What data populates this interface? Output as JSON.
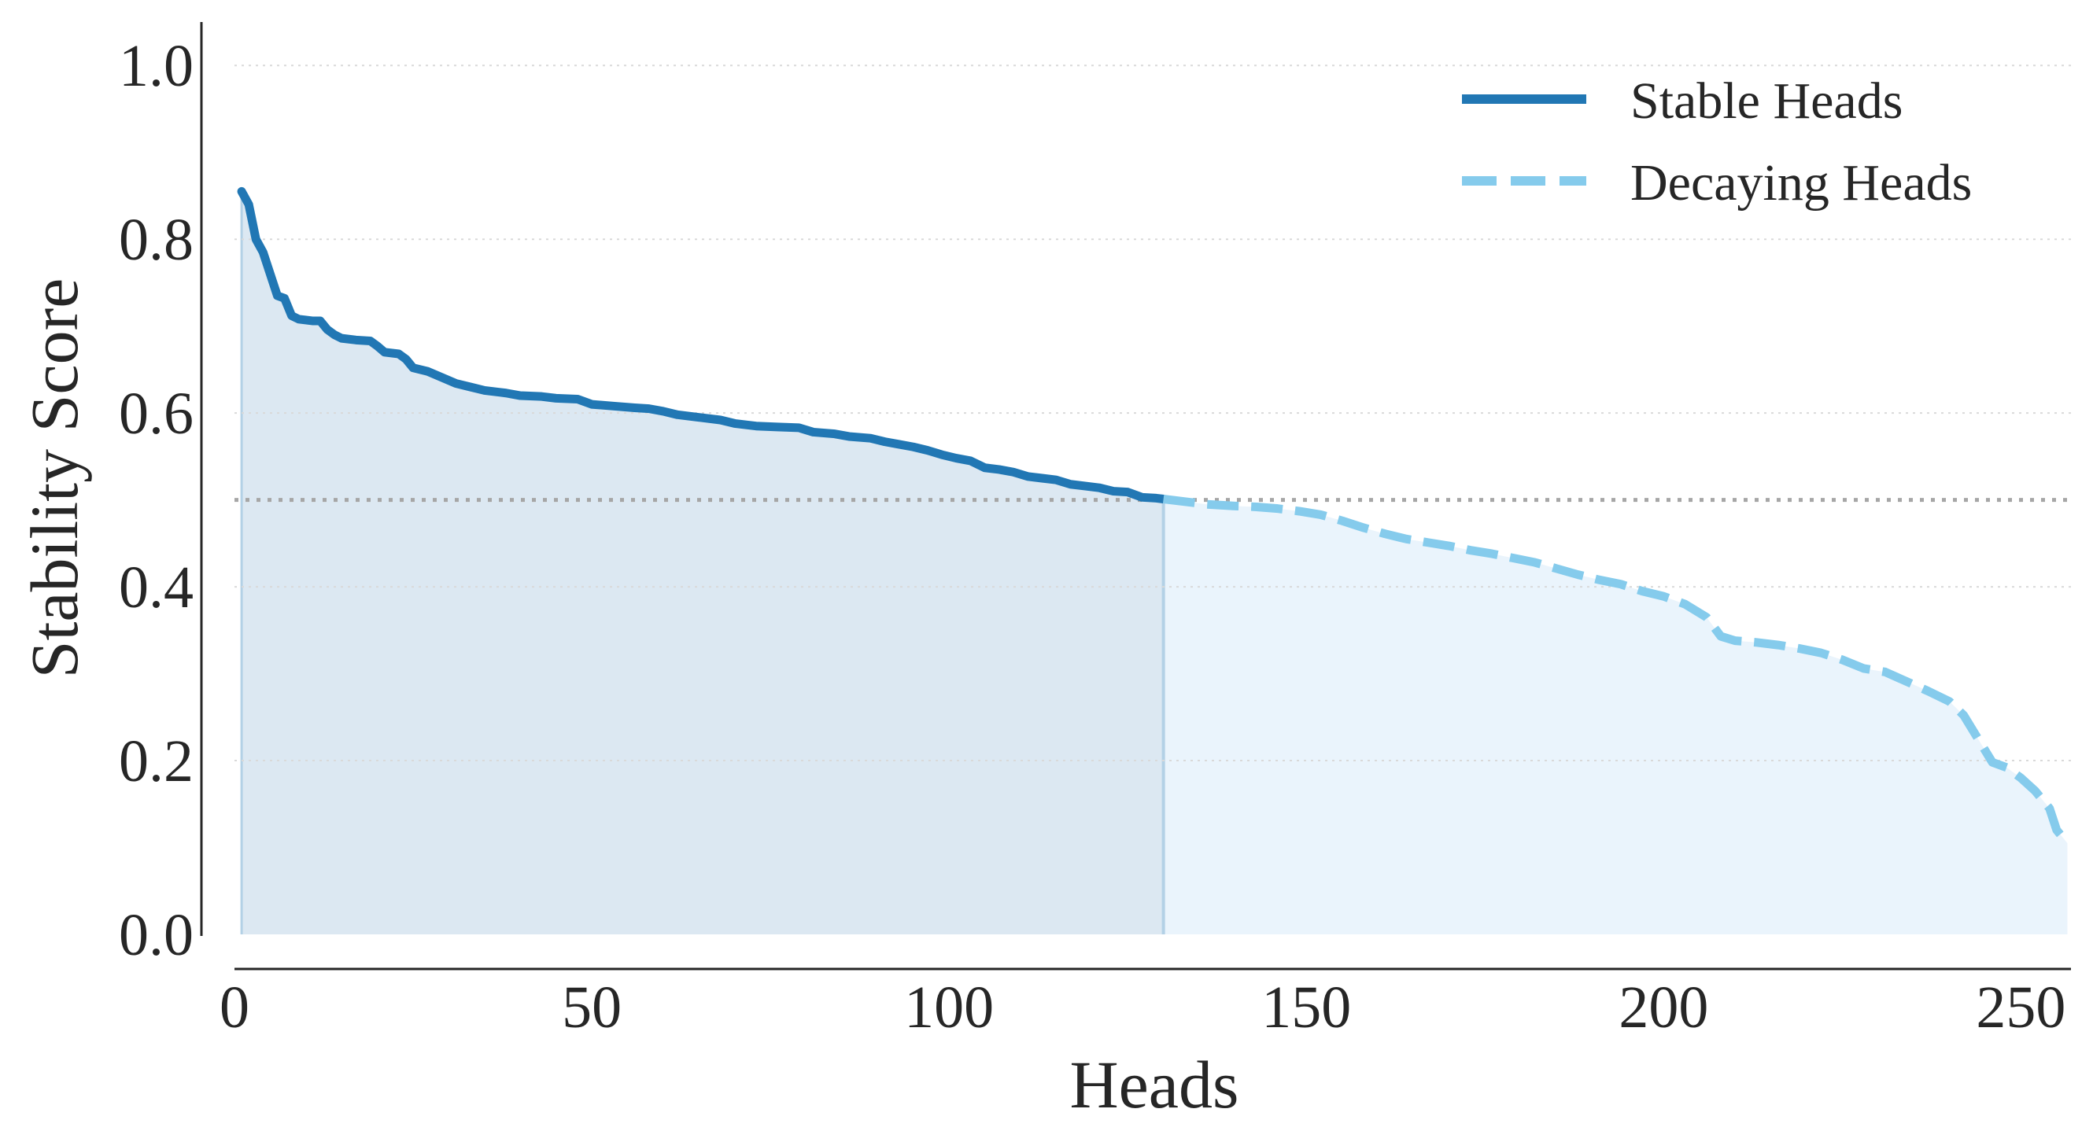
{
  "chart_data": {
    "type": "area",
    "xlabel": "Heads",
    "ylabel": "Stability Score",
    "xlim": [
      0,
      257
    ],
    "ylim": [
      0.0,
      1.05
    ],
    "x_ticks": [
      0,
      50,
      100,
      150,
      200,
      250
    ],
    "y_ticks": [
      0.0,
      0.2,
      0.4,
      0.6,
      0.8,
      1.0
    ],
    "x_tick_labels": [
      "0",
      "50",
      "100",
      "150",
      "200",
      "250"
    ],
    "y_tick_labels": [
      "0.0",
      "0.2",
      "0.4",
      "0.6",
      "0.8",
      "1.0"
    ],
    "grid": "horizontal dotted",
    "threshold": 0.5,
    "split_x": 130,
    "legend_position": "top-right",
    "series": [
      {
        "name": "Stable Heads",
        "style": "solid",
        "color": "#2177b4",
        "fill_color": "#dce8f2",
        "points": [
          [
            1,
            0.855
          ],
          [
            2,
            0.84
          ],
          [
            3,
            0.8
          ],
          [
            4,
            0.785
          ],
          [
            5,
            0.76
          ],
          [
            6,
            0.735
          ],
          [
            7,
            0.732
          ],
          [
            8,
            0.712
          ],
          [
            9,
            0.708
          ],
          [
            10,
            0.707
          ],
          [
            11,
            0.706
          ],
          [
            12,
            0.706
          ],
          [
            13,
            0.696
          ],
          [
            14,
            0.69
          ],
          [
            15,
            0.686
          ],
          [
            17,
            0.684
          ],
          [
            19,
            0.683
          ],
          [
            20,
            0.677
          ],
          [
            21,
            0.67
          ],
          [
            23,
            0.668
          ],
          [
            24,
            0.662
          ],
          [
            25,
            0.652
          ],
          [
            27,
            0.648
          ],
          [
            29,
            0.641
          ],
          [
            31,
            0.634
          ],
          [
            33,
            0.63
          ],
          [
            35,
            0.626
          ],
          [
            38,
            0.623
          ],
          [
            40,
            0.62
          ],
          [
            43,
            0.619
          ],
          [
            45,
            0.617
          ],
          [
            48,
            0.616
          ],
          [
            50,
            0.61
          ],
          [
            53,
            0.608
          ],
          [
            56,
            0.606
          ],
          [
            58,
            0.605
          ],
          [
            60,
            0.602
          ],
          [
            62,
            0.598
          ],
          [
            65,
            0.595
          ],
          [
            68,
            0.592
          ],
          [
            70,
            0.588
          ],
          [
            73,
            0.585
          ],
          [
            76,
            0.584
          ],
          [
            79,
            0.583
          ],
          [
            81,
            0.578
          ],
          [
            84,
            0.576
          ],
          [
            86,
            0.573
          ],
          [
            89,
            0.571
          ],
          [
            91,
            0.567
          ],
          [
            93,
            0.564
          ],
          [
            95,
            0.561
          ],
          [
            97,
            0.557
          ],
          [
            99,
            0.552
          ],
          [
            101,
            0.548
          ],
          [
            103,
            0.545
          ],
          [
            105,
            0.537
          ],
          [
            107,
            0.535
          ],
          [
            109,
            0.532
          ],
          [
            111,
            0.527
          ],
          [
            113,
            0.525
          ],
          [
            115,
            0.523
          ],
          [
            117,
            0.518
          ],
          [
            119,
            0.516
          ],
          [
            121,
            0.514
          ],
          [
            123,
            0.51
          ],
          [
            125,
            0.509
          ],
          [
            127,
            0.503
          ],
          [
            129,
            0.502
          ],
          [
            130,
            0.501
          ]
        ]
      },
      {
        "name": "Decaying Heads",
        "style": "dashed",
        "color": "#85cbec",
        "fill_color": "#eaf4fc",
        "points": [
          [
            130,
            0.501
          ],
          [
            133,
            0.498
          ],
          [
            136,
            0.495
          ],
          [
            140,
            0.493
          ],
          [
            143,
            0.492
          ],
          [
            146,
            0.49
          ],
          [
            149,
            0.487
          ],
          [
            152,
            0.483
          ],
          [
            155,
            0.476
          ],
          [
            158,
            0.468
          ],
          [
            161,
            0.461
          ],
          [
            164,
            0.455
          ],
          [
            167,
            0.451
          ],
          [
            170,
            0.447
          ],
          [
            173,
            0.442
          ],
          [
            176,
            0.438
          ],
          [
            179,
            0.433
          ],
          [
            182,
            0.428
          ],
          [
            185,
            0.421
          ],
          [
            188,
            0.414
          ],
          [
            191,
            0.408
          ],
          [
            194,
            0.403
          ],
          [
            197,
            0.395
          ],
          [
            200,
            0.389
          ],
          [
            203,
            0.38
          ],
          [
            206,
            0.365
          ],
          [
            208,
            0.343
          ],
          [
            210,
            0.338
          ],
          [
            213,
            0.336
          ],
          [
            216,
            0.333
          ],
          [
            219,
            0.329
          ],
          [
            222,
            0.324
          ],
          [
            225,
            0.316
          ],
          [
            228,
            0.306
          ],
          [
            231,
            0.302
          ],
          [
            234,
            0.291
          ],
          [
            237,
            0.28
          ],
          [
            240,
            0.268
          ],
          [
            242,
            0.252
          ],
          [
            244,
            0.225
          ],
          [
            246,
            0.198
          ],
          [
            248,
            0.192
          ],
          [
            250,
            0.18
          ],
          [
            252,
            0.165
          ],
          [
            254,
            0.145
          ],
          [
            255,
            0.12
          ],
          [
            256.5,
            0.105
          ]
        ]
      }
    ]
  },
  "colors": {
    "grid": "#d9d9d9",
    "threshold": "#a6a6a6",
    "axis": "#262626",
    "split_line": "#b3d1e6"
  }
}
